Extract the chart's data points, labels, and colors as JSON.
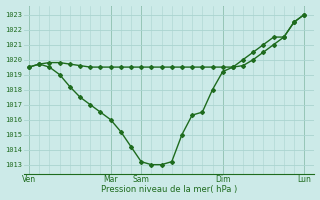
{
  "bg_color": "#cceae8",
  "grid_color": "#aad4d0",
  "line_color": "#1e6b1e",
  "marker_color": "#1e6b1e",
  "xtick_positions": [
    0,
    8,
    11,
    19,
    27
  ],
  "xtick_labels": [
    "Ven",
    "Mar",
    "Sam",
    "Dim",
    "Lun"
  ],
  "ytick_values": [
    1013,
    1014,
    1015,
    1016,
    1017,
    1018,
    1019,
    1020,
    1021,
    1022,
    1023
  ],
  "xlabel": "Pression niveau de la mer( hPa )",
  "ylim": [
    1012.4,
    1023.6
  ],
  "xlim": [
    -0.5,
    28.0
  ],
  "line1_x": [
    0,
    1,
    2,
    3,
    4,
    5,
    6,
    7,
    8,
    9,
    10,
    11,
    12,
    13,
    14,
    15,
    16,
    17,
    18,
    19,
    20,
    21,
    22,
    23,
    24,
    25,
    26,
    27
  ],
  "line1_y": [
    1019.5,
    1019.7,
    1019.8,
    1019.8,
    1019.7,
    1019.6,
    1019.5,
    1019.5,
    1019.5,
    1019.5,
    1019.5,
    1019.5,
    1019.5,
    1019.5,
    1019.5,
    1019.5,
    1019.5,
    1019.5,
    1019.5,
    1019.5,
    1019.5,
    1019.6,
    1020.0,
    1020.5,
    1021.0,
    1021.5,
    1022.5,
    1023.0
  ],
  "line2_x": [
    0,
    1,
    2,
    3,
    4,
    5,
    6,
    7,
    8,
    9,
    10,
    11,
    12,
    13,
    14,
    15,
    16,
    17,
    18,
    19,
    20,
    21,
    22,
    23,
    24,
    25,
    26,
    27
  ],
  "line2_y": [
    1019.5,
    1019.7,
    1019.5,
    1019.0,
    1018.2,
    1017.5,
    1017.0,
    1016.5,
    1016.0,
    1015.2,
    1014.2,
    1013.2,
    1013.0,
    1013.0,
    1013.2,
    1015.0,
    1016.3,
    1016.5,
    1018.0,
    1019.2,
    1019.5,
    1020.0,
    1020.5,
    1021.0,
    1021.5,
    1021.5,
    1022.5,
    1023.0
  ]
}
